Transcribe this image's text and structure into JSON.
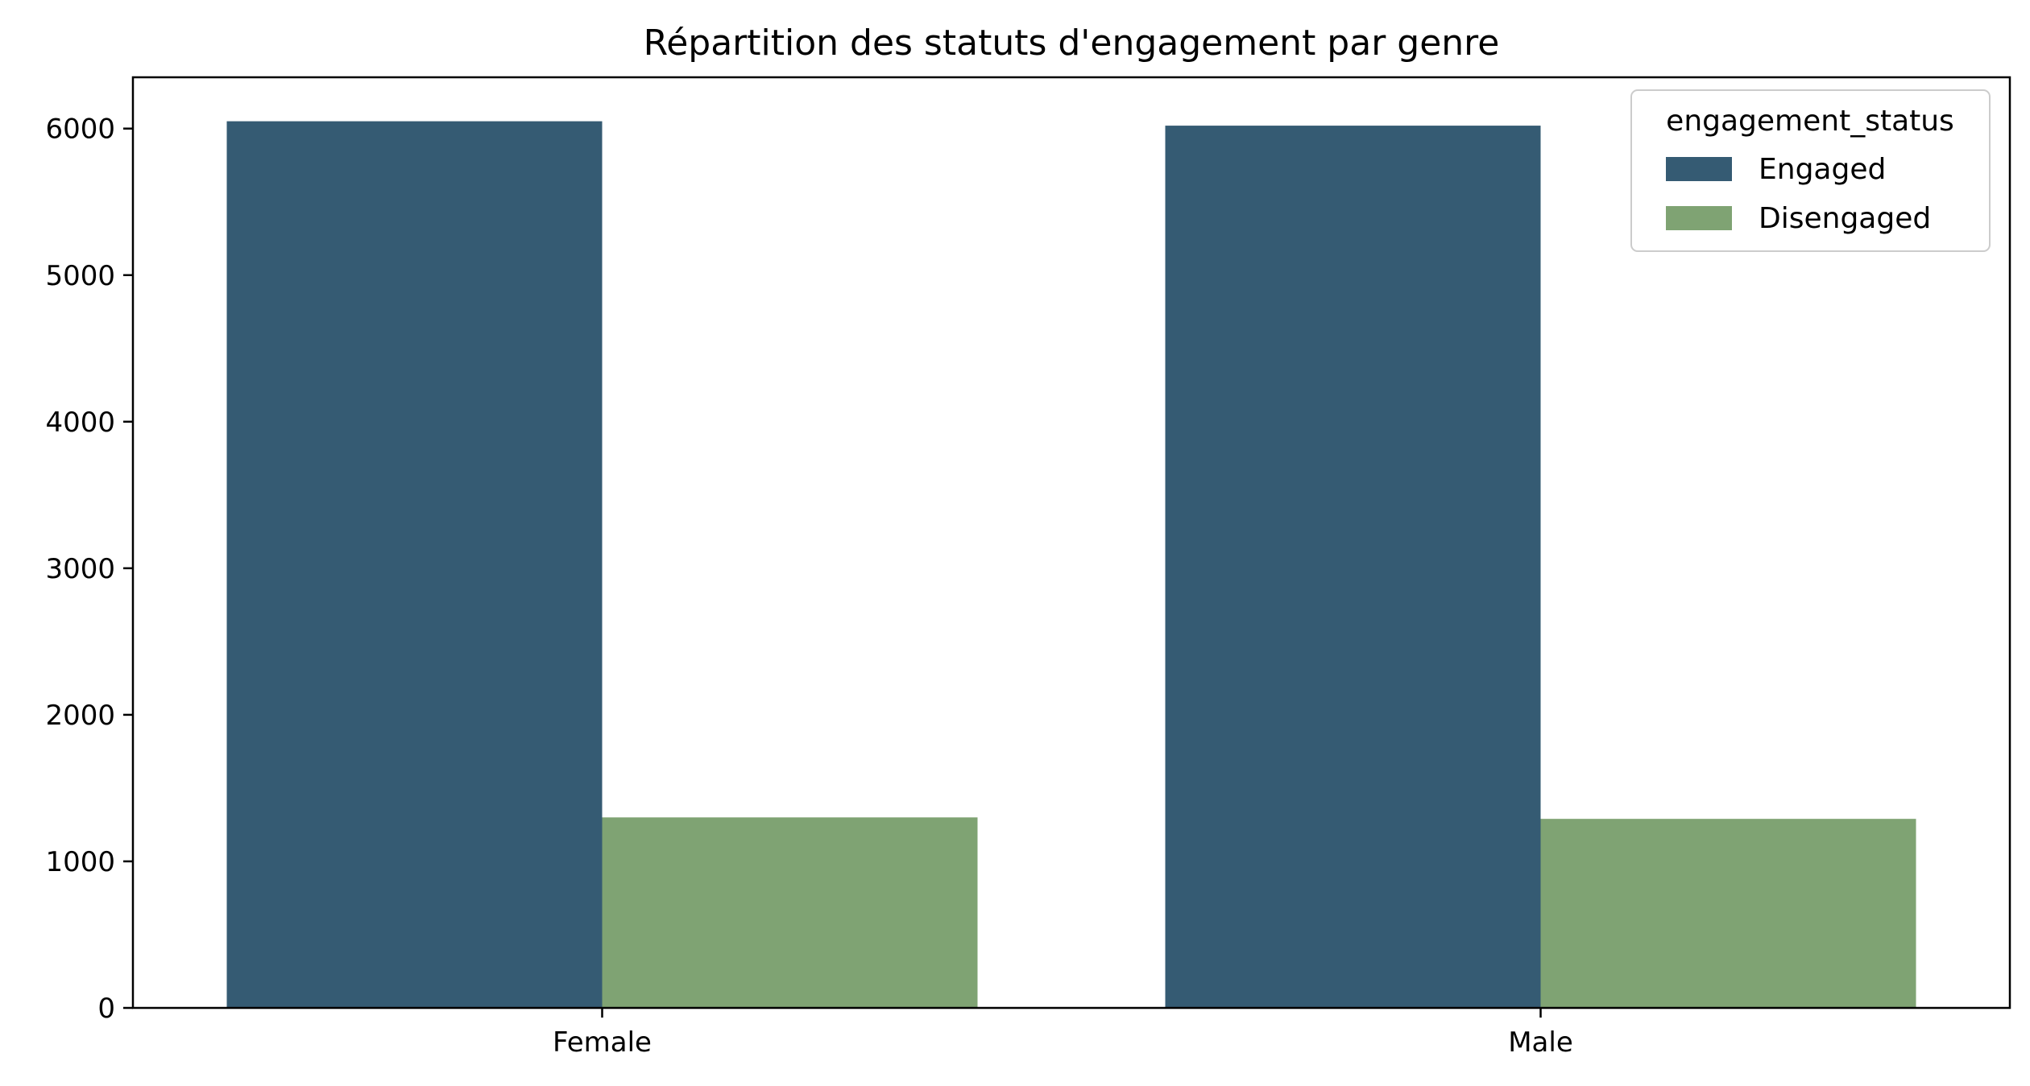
{
  "chart_data": {
    "type": "bar",
    "title": "Répartition des statuts d'engagement par genre",
    "xlabel": "",
    "ylabel": "",
    "categories": [
      "Female",
      "Male"
    ],
    "series": [
      {
        "name": "Engaged",
        "color": "#355b73",
        "values": [
          6050,
          6020
        ]
      },
      {
        "name": "Disengaged",
        "color": "#7fa373",
        "values": [
          1300,
          1290
        ]
      }
    ],
    "ylim": [
      0,
      6350
    ],
    "yticks": [
      "0",
      "1000",
      "2000",
      "3000",
      "4000",
      "5000",
      "6000"
    ],
    "legend": {
      "title": "engagement_status",
      "placement": "top-right"
    },
    "grid": false
  }
}
